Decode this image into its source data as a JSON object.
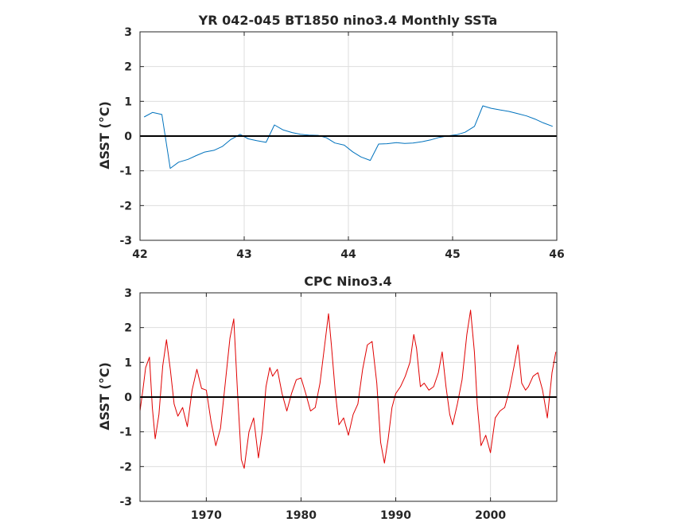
{
  "chart_data": [
    {
      "type": "line",
      "title": "YR 042-045 BT1850 nino3.4 Monthly SSTa",
      "ylabel": "ΔSST (°C)",
      "xlim": [
        42,
        46
      ],
      "ylim": [
        -3,
        3
      ],
      "xticks": [
        "42",
        "43",
        "44",
        "45",
        "46"
      ],
      "yticks": [
        "3",
        "2",
        "1",
        "0",
        "-1",
        "-2",
        "-3"
      ],
      "grid": true,
      "zero_line": true,
      "series": [
        {
          "color": "#0072bd",
          "x": [
            42.04,
            42.12,
            42.21,
            42.29,
            42.37,
            42.46,
            42.54,
            42.62,
            42.71,
            42.79,
            42.87,
            42.96,
            43.04,
            43.12,
            43.21,
            43.29,
            43.37,
            43.46,
            43.54,
            43.62,
            43.71,
            43.79,
            43.87,
            43.96,
            44.04,
            44.12,
            44.21,
            44.29,
            44.37,
            44.46,
            44.54,
            44.62,
            44.71,
            44.79,
            44.87,
            44.96,
            45.04,
            45.12,
            45.21,
            45.29,
            45.37,
            45.46,
            45.54,
            45.62,
            45.71,
            45.79,
            45.87,
            45.96
          ],
          "y": [
            0.55,
            0.68,
            0.62,
            -0.93,
            -0.75,
            -0.67,
            -0.56,
            -0.46,
            -0.41,
            -0.3,
            -0.1,
            0.05,
            -0.08,
            -0.13,
            -0.18,
            0.32,
            0.18,
            0.1,
            0.05,
            0.03,
            0.02,
            -0.05,
            -0.2,
            -0.26,
            -0.45,
            -0.6,
            -0.7,
            -0.23,
            -0.22,
            -0.19,
            -0.21,
            -0.2,
            -0.16,
            -0.11,
            -0.04,
            0.01,
            0.04,
            0.11,
            0.28,
            0.87,
            0.8,
            0.75,
            0.71,
            0.65,
            0.58,
            0.49,
            0.38,
            0.28
          ]
        }
      ]
    },
    {
      "type": "line",
      "title": "CPC Nino3.4",
      "ylabel": "ΔSST (°C)",
      "xlim": [
        1963,
        2007
      ],
      "ylim": [
        -3,
        3
      ],
      "xticks": [
        "1970",
        "1980",
        "1990",
        "2000"
      ],
      "yticks": [
        "3",
        "2",
        "1",
        "0",
        "-1",
        "-2",
        "-3"
      ],
      "grid": true,
      "zero_line": true,
      "series": [
        {
          "color": "#e00000",
          "x": [
            1963.0,
            1963.3,
            1963.6,
            1964.0,
            1964.3,
            1964.6,
            1965.0,
            1965.4,
            1965.8,
            1966.2,
            1966.6,
            1967.0,
            1967.5,
            1968.0,
            1968.5,
            1969.0,
            1969.5,
            1970.0,
            1970.5,
            1971.0,
            1971.5,
            1972.0,
            1972.5,
            1972.9,
            1973.3,
            1973.7,
            1974.0,
            1974.5,
            1975.0,
            1975.5,
            1975.9,
            1976.3,
            1976.7,
            1977.0,
            1977.5,
            1978.0,
            1978.5,
            1979.0,
            1979.5,
            1980.0,
            1980.5,
            1981.0,
            1981.5,
            1982.0,
            1982.5,
            1982.9,
            1983.2,
            1983.6,
            1984.0,
            1984.5,
            1985.0,
            1985.5,
            1986.0,
            1986.5,
            1987.0,
            1987.5,
            1988.0,
            1988.4,
            1988.8,
            1989.2,
            1989.6,
            1990.0,
            1990.5,
            1991.0,
            1991.5,
            1991.9,
            1992.2,
            1992.6,
            1993.0,
            1993.5,
            1994.0,
            1994.5,
            1994.9,
            1995.3,
            1995.7,
            1996.0,
            1996.5,
            1997.0,
            1997.5,
            1997.9,
            1998.3,
            1998.6,
            1999.0,
            1999.5,
            2000.0,
            2000.5,
            2001.0,
            2001.5,
            2002.0,
            2002.5,
            2002.9,
            2003.3,
            2003.7,
            2004.0,
            2004.5,
            2005.0,
            2005.5,
            2006.0,
            2006.5,
            2006.9
          ],
          "y": [
            -0.4,
            0.2,
            0.85,
            1.15,
            -0.3,
            -1.2,
            -0.5,
            0.9,
            1.65,
            0.8,
            -0.2,
            -0.55,
            -0.3,
            -0.85,
            0.2,
            0.8,
            0.25,
            0.2,
            -0.7,
            -1.4,
            -0.9,
            0.4,
            1.7,
            2.25,
            0.1,
            -1.8,
            -2.05,
            -1.0,
            -0.6,
            -1.75,
            -1.0,
            0.3,
            0.85,
            0.6,
            0.8,
            0.1,
            -0.4,
            0.1,
            0.5,
            0.55,
            0.1,
            -0.4,
            -0.3,
            0.4,
            1.5,
            2.4,
            1.5,
            0.2,
            -0.8,
            -0.6,
            -1.1,
            -0.5,
            -0.2,
            0.8,
            1.5,
            1.6,
            0.4,
            -1.3,
            -1.9,
            -1.2,
            -0.3,
            0.1,
            0.3,
            0.6,
            1.0,
            1.8,
            1.4,
            0.3,
            0.4,
            0.2,
            0.3,
            0.7,
            1.3,
            0.3,
            -0.5,
            -0.8,
            -0.2,
            0.5,
            1.8,
            2.5,
            1.3,
            -0.2,
            -1.4,
            -1.1,
            -1.6,
            -0.6,
            -0.4,
            -0.3,
            0.2,
            0.9,
            1.5,
            0.4,
            0.2,
            0.3,
            0.6,
            0.7,
            0.2,
            -0.6,
            0.7,
            1.3
          ]
        }
      ]
    }
  ]
}
